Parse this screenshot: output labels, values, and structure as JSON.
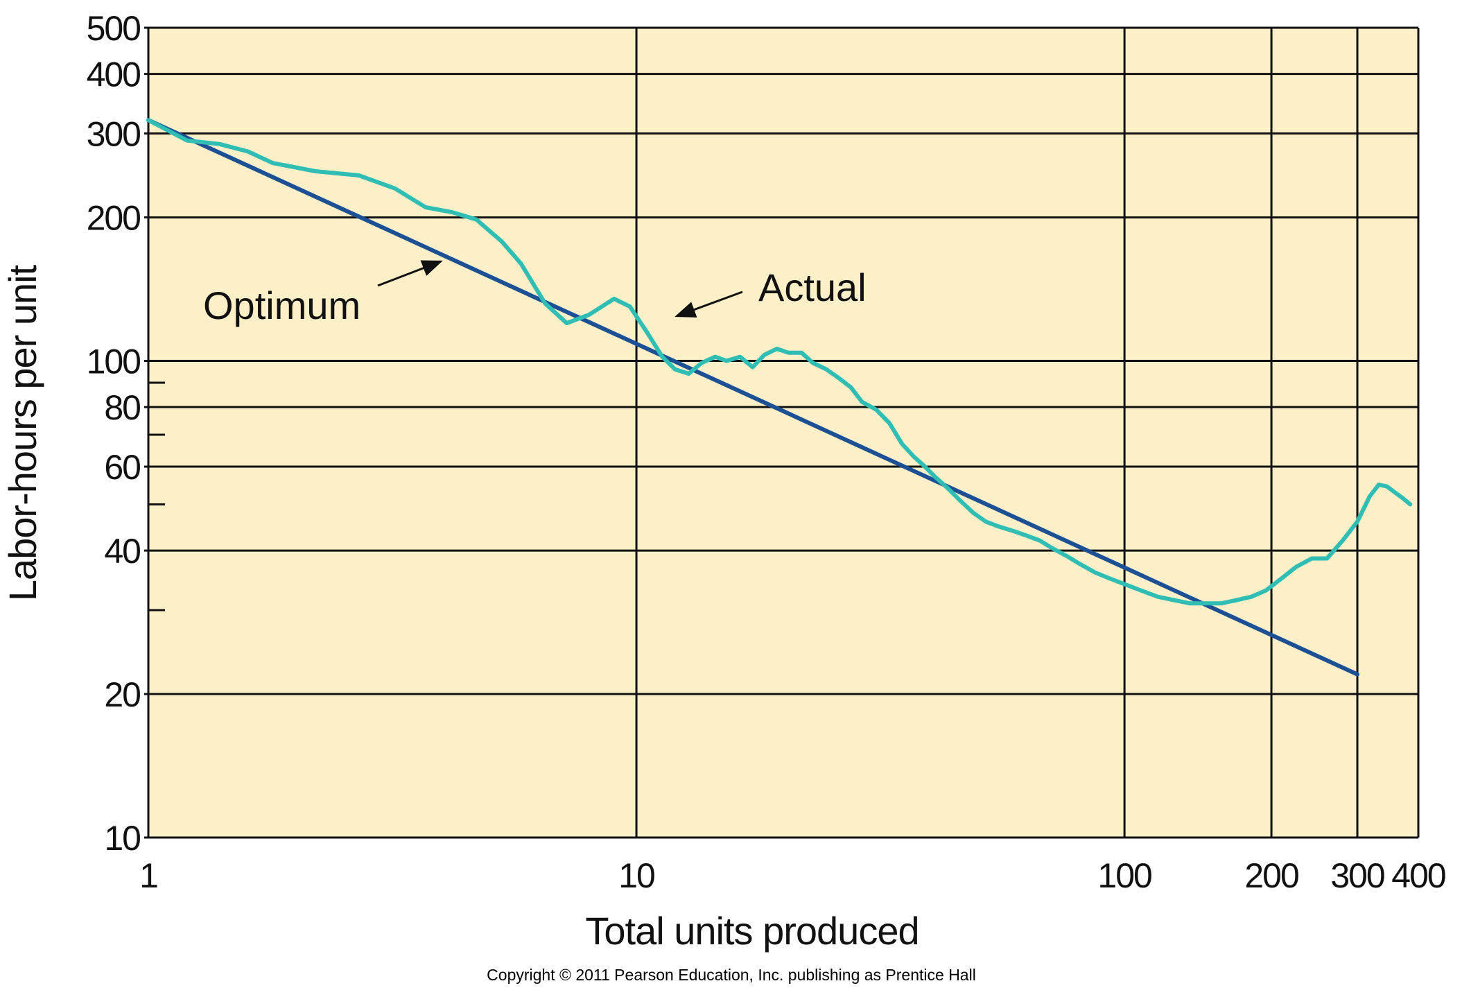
{
  "chart_data": {
    "type": "line",
    "title": "",
    "xlabel": "Total units produced",
    "ylabel": "Labor-hours per unit",
    "xscale": "log",
    "yscale": "log",
    "xlim": [
      1,
      400
    ],
    "ylim": [
      10,
      500
    ],
    "x_ticks": [
      1,
      10,
      100,
      200,
      300,
      400
    ],
    "x_tick_labels": [
      "1",
      "10",
      "100",
      "200",
      "300",
      "400"
    ],
    "y_ticks": [
      10,
      20,
      40,
      60,
      80,
      100,
      200,
      300,
      400,
      500
    ],
    "y_tick_labels": [
      "10",
      "20",
      "40",
      "60",
      "80",
      "100",
      "200",
      "300",
      "400",
      "500"
    ],
    "x_grid": [
      10,
      100,
      200,
      300
    ],
    "y_grid": [
      20,
      40,
      60,
      80,
      100,
      200,
      300,
      400
    ],
    "y_minor_ticks": [
      30,
      50,
      70,
      90
    ],
    "grid": true,
    "colors": {
      "plot_background": "#fdf0c8",
      "grid": "#111111",
      "optimum": "#1c4f94",
      "actual": "#30bdb4",
      "arrow": "#111111"
    },
    "series": [
      {
        "name": "Optimum",
        "x": [
          1,
          300
        ],
        "y": [
          320,
          22
        ]
      },
      {
        "name": "Actual",
        "x": [
          1,
          1.2,
          1.4,
          1.6,
          1.8,
          2.2,
          2.7,
          3.2,
          3.7,
          4.2,
          4.7,
          5.3,
          5.8,
          6.5,
          7.2,
          8.0,
          9.0,
          9.7,
          10.5,
          11.3,
          12.0,
          12.8,
          13.6,
          14.5,
          15.3,
          16.3,
          17.3,
          18.3,
          19.4,
          20.5,
          21.8,
          23.0,
          24.5,
          26.0,
          27.5,
          29.0,
          31.0,
          33.0,
          35.0,
          37.0,
          39.0,
          41.0,
          43.5,
          46.0,
          49.0,
          52.0,
          55.0,
          59.0,
          63.0,
          67.0,
          71.0,
          76.0,
          81.0,
          87.0,
          93.0,
          100.0,
          108.0,
          117.0,
          126.0,
          136.0,
          147.0,
          158.0,
          170.0,
          182.0,
          195.0,
          210.0,
          225.0,
          242.0,
          260.0,
          280.0,
          300.0,
          318.0,
          332.0,
          345.0,
          358.0,
          372.0,
          385.0
        ],
        "y": [
          320,
          290,
          285,
          275,
          260,
          250,
          245,
          230,
          210,
          205,
          198,
          178,
          160,
          132,
          120,
          125,
          135,
          130,
          115,
          102,
          96,
          94,
          99,
          102,
          100,
          102,
          97,
          103,
          106,
          104,
          104,
          99,
          96,
          92,
          88,
          82,
          79,
          74,
          67,
          63,
          60,
          57,
          54,
          51,
          48,
          46,
          45,
          44,
          43,
          42,
          40.5,
          39,
          37.5,
          36,
          35,
          34,
          33,
          32,
          31.5,
          31,
          31,
          31,
          31.5,
          32,
          33,
          35,
          37,
          38.5,
          38.5,
          42,
          46,
          52,
          55,
          54.5,
          53,
          51.5,
          50
        ]
      }
    ],
    "annotations": [
      {
        "text": "Optimum",
        "points_to": "Optimum"
      },
      {
        "text": "Actual",
        "points_to": "Actual"
      }
    ]
  },
  "footer": {
    "copyright": "Copyright © 2011 Pearson Education, Inc. publishing as Prentice Hall"
  }
}
